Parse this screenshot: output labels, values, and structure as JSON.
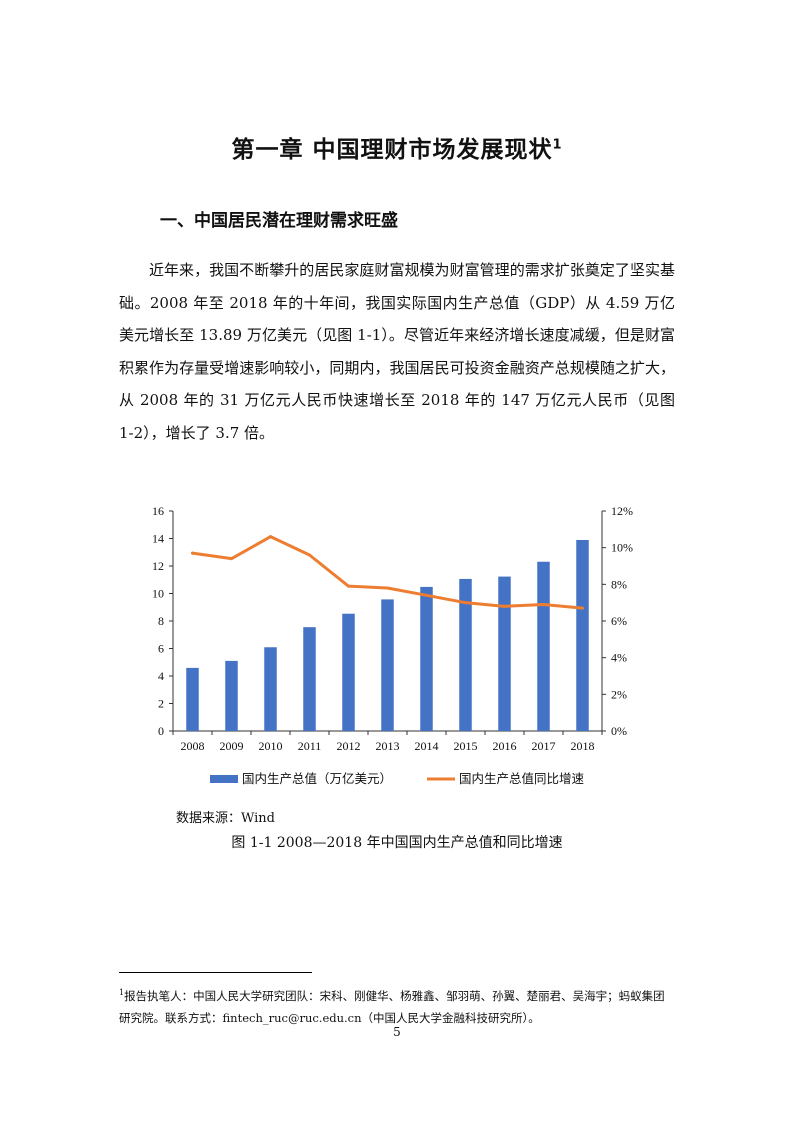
{
  "header": {
    "chapter_title": "第一章  中国理财市场发展现状",
    "chapter_footnote_mark": "1",
    "section_title": "一、中国居民潜在理财需求旺盛"
  },
  "body": {
    "paragraph": "近年来，我国不断攀升的居民家庭财富规模为财富管理的需求扩张奠定了坚实基础。2008 年至 2018 年的十年间，我国实际国内生产总值（GDP）从 4.59 万亿美元增长至 13.89 万亿美元（见图 1-1）。尽管近年来经济增长速度减缓，但是财富积累作为存量受增速影响较小，同期内，我国居民可投资金融资产总规模随之扩大，从 2008 年的 31 万亿元人民币快速增长至 2018 年的 147 万亿元人民币（见图 1-2），增长了 3.7 倍。"
  },
  "chart_data": {
    "type": "bar",
    "categories": [
      "2008",
      "2009",
      "2010",
      "2011",
      "2012",
      "2013",
      "2014",
      "2015",
      "2016",
      "2017",
      "2018"
    ],
    "series": [
      {
        "name": "国内生产总值（万亿美元）",
        "type": "bar",
        "axis": "left",
        "color": "#4472C4",
        "values": [
          4.59,
          5.1,
          6.09,
          7.55,
          8.53,
          9.57,
          10.48,
          11.06,
          11.23,
          12.31,
          13.89
        ]
      },
      {
        "name": "国内生产总值同比增速",
        "type": "line",
        "axis": "right",
        "color": "#ED7D31",
        "values": [
          9.7,
          9.4,
          10.6,
          9.6,
          7.9,
          7.8,
          7.4,
          7.0,
          6.8,
          6.9,
          6.7
        ]
      }
    ],
    "y_left": {
      "min": 0,
      "max": 16,
      "ticks": [
        "0",
        "2",
        "4",
        "6",
        "8",
        "10",
        "12",
        "14",
        "16"
      ]
    },
    "y_right": {
      "min": 0,
      "max": 12,
      "ticks": [
        "0%",
        "2%",
        "4%",
        "6%",
        "8%",
        "10%",
        "12%"
      ]
    },
    "grid": false,
    "legend_position": "bottom",
    "source": "数据来源：Wind",
    "caption": "图 1-1    2008—2018 年中国国内生产总值和同比增速"
  },
  "footnote": {
    "mark": "1",
    "text": "报告执笔人：中国人民大学研究团队：宋科、刚健华、杨雅鑫、邹羽萌、孙翼、楚丽君、吴海宇；蚂蚁集团研究院。联系方式：fintech_ruc@ruc.edu.cn（中国人民大学金融科技研究所）。"
  },
  "page": {
    "number": "5"
  }
}
